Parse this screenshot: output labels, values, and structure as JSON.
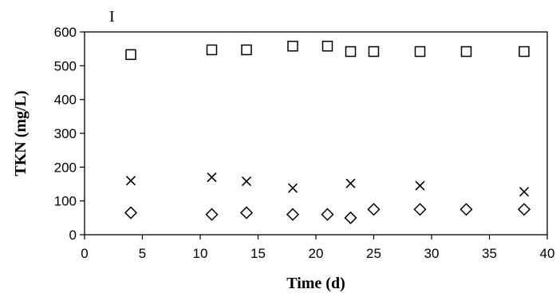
{
  "chart_data": {
    "type": "scatter",
    "title": "",
    "panel_label": "I",
    "xlabel": "Time (d)",
    "ylabel": "TKN (mg/L)",
    "xlim": [
      0,
      40
    ],
    "ylim": [
      0,
      600
    ],
    "xticks": [
      0,
      5,
      10,
      15,
      20,
      25,
      30,
      35,
      40
    ],
    "yticks": [
      0,
      100,
      200,
      300,
      400,
      500,
      600
    ],
    "grid": false,
    "legend": "none",
    "series": [
      {
        "marker": "square",
        "x": [
          4,
          11,
          14,
          18,
          21,
          23,
          25,
          29,
          33,
          38
        ],
        "y": [
          533,
          547,
          547,
          558,
          558,
          542,
          542,
          542,
          542,
          542
        ]
      },
      {
        "marker": "x",
        "x": [
          4,
          11,
          14,
          18,
          23,
          29,
          38
        ],
        "y": [
          160,
          170,
          158,
          138,
          152,
          145,
          127
        ]
      },
      {
        "marker": "diamond",
        "x": [
          4,
          11,
          14,
          18,
          21,
          23,
          25,
          29,
          33,
          38
        ],
        "y": [
          65,
          60,
          65,
          60,
          60,
          50,
          75,
          75,
          75,
          75
        ]
      }
    ]
  }
}
